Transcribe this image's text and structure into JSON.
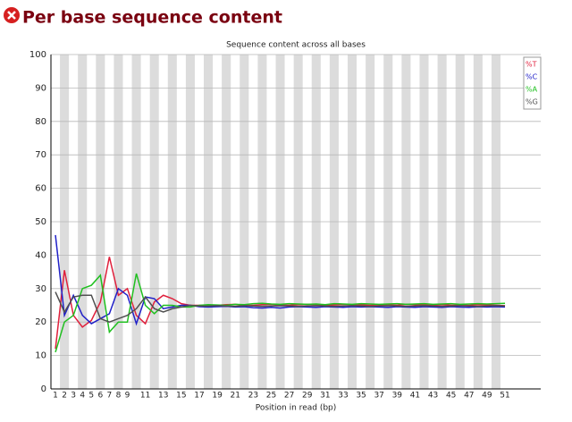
{
  "header": {
    "title": "Per base sequence content"
  },
  "chart_data": {
    "type": "line",
    "title": "Sequence content across all bases",
    "x_label": "Position in read (bp)",
    "categories": [
      "1",
      "2",
      "3",
      "4",
      "5",
      "6",
      "7",
      "8",
      "9",
      null,
      "11",
      null,
      "13",
      null,
      "15",
      null,
      "17",
      null,
      "19",
      null,
      "21",
      null,
      "23",
      null,
      "25",
      null,
      "27",
      null,
      "29",
      null,
      "31",
      null,
      "33",
      null,
      "35",
      null,
      "37",
      null,
      "39",
      null,
      "41",
      null,
      "43",
      null,
      "45",
      null,
      "47",
      null,
      "49",
      null,
      "51"
    ],
    "ylim": [
      0,
      100
    ],
    "yticks": [
      0,
      10,
      20,
      30,
      40,
      50,
      60,
      70,
      80,
      90,
      100
    ],
    "grid": true,
    "legend": "top-right",
    "series": [
      {
        "name": "%T",
        "color": "#e0203c",
        "values": [
          12,
          35.5,
          22,
          18.5,
          20.5,
          26,
          39.5,
          28,
          30,
          22,
          19.5,
          26,
          28,
          27,
          25.5,
          25,
          25,
          25,
          25,
          25.2,
          25.3,
          25,
          25,
          25.2,
          25.3,
          25.1,
          25,
          25.2,
          25.3,
          25.2,
          25,
          25.1,
          25.3,
          25.2,
          25.1,
          25,
          25.2,
          25.1,
          25,
          25.3,
          25.2,
          25.1,
          25,
          25.2,
          25,
          25.1,
          25,
          25.2,
          25.1,
          25,
          24.9
        ]
      },
      {
        "name": "%C",
        "color": "#2020c8",
        "values": [
          46,
          22,
          28,
          22,
          19.5,
          21,
          22.5,
          30,
          28,
          19.5,
          27.5,
          27,
          24,
          24.5,
          25,
          25,
          24.6,
          24.5,
          24.6,
          24.7,
          24.5,
          24.6,
          24.3,
          24.2,
          24.4,
          24.2,
          24.5,
          24.6,
          24.5,
          24.4,
          24.6,
          24.5,
          24.4,
          24.6,
          24.5,
          24.6,
          24.5,
          24.4,
          24.6,
          24.5,
          24.4,
          24.6,
          24.5,
          24.4,
          24.6,
          24.5,
          24.4,
          24.6,
          24.5,
          24.6,
          24.5
        ]
      },
      {
        "name": "%A",
        "color": "#20c020",
        "values": [
          11,
          20,
          22,
          30,
          31,
          34,
          17,
          20,
          20,
          34.5,
          25,
          22.5,
          25,
          25,
          24.5,
          24.5,
          25,
          25.2,
          25.1,
          25,
          25.3,
          25.2,
          25.5,
          25.6,
          25.4,
          25.3,
          25.5,
          25.4,
          25.3,
          25.4,
          25.2,
          25.5,
          25.4,
          25.3,
          25.5,
          25.4,
          25.3,
          25.4,
          25.5,
          25.3,
          25.4,
          25.5,
          25.3,
          25.4,
          25.5,
          25.3,
          25.4,
          25.5,
          25.4,
          25.5,
          25.6
        ]
      },
      {
        "name": "%G",
        "color": "#505050",
        "values": [
          29,
          23,
          27.5,
          28,
          28,
          21,
          20,
          21,
          22,
          24,
          27.5,
          24,
          23,
          24,
          24.5,
          25,
          24.8,
          24.8,
          24.9,
          24.8,
          24.7,
          24.9,
          24.8,
          24.7,
          24.8,
          24.9,
          24.8,
          24.7,
          24.8,
          24.9,
          24.8,
          24.7,
          24.8,
          24.9,
          24.8,
          24.7,
          24.8,
          24.9,
          24.8,
          24.7,
          24.8,
          24.9,
          24.8,
          24.7,
          24.8,
          24.9,
          24.8,
          24.7,
          24.8,
          24.9,
          24.8
        ]
      }
    ]
  }
}
